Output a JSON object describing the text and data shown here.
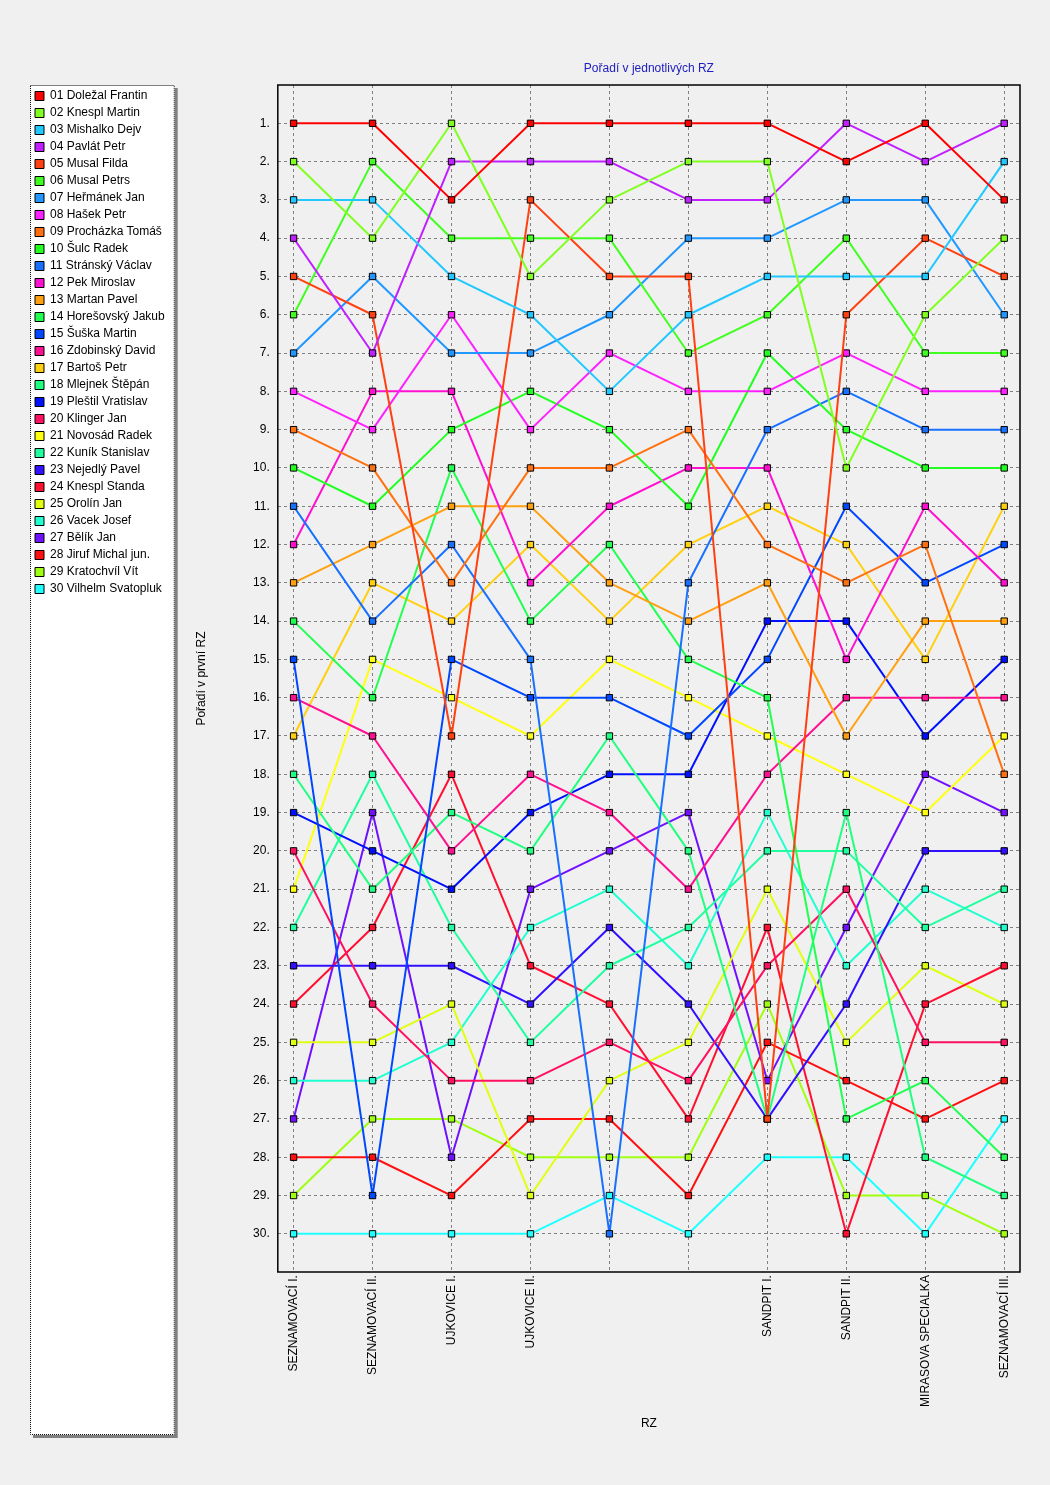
{
  "chart_data": {
    "type": "line",
    "title": "Pořadí v jednotlivých RZ",
    "xlabel": "RZ",
    "ylabel": "Pořadí v první RZ",
    "categories": [
      "SEZNAMOVACÍ I.",
      "SEZNAMOVACÍ II.",
      "UJKOVICE I.",
      "UJKOVICE II.",
      null,
      null,
      "SANDPIT I.",
      "SANDPIT II.",
      "MIRASOVA SPECIALKA",
      "SEZNAMOVACÍ III."
    ],
    "ylim": [
      31,
      0
    ],
    "yticks": [
      {
        "value": 1,
        "label": "1."
      },
      {
        "value": 2,
        "label": "2."
      },
      {
        "value": 3,
        "label": "3."
      },
      {
        "value": 4,
        "label": "4."
      },
      {
        "value": 5,
        "label": "5."
      },
      {
        "value": 6,
        "label": "6."
      },
      {
        "value": 7,
        "label": "7."
      },
      {
        "value": 8,
        "label": "8."
      },
      {
        "value": 9,
        "label": "9."
      },
      {
        "value": 10,
        "label": "10."
      },
      {
        "value": 11,
        "label": "11."
      },
      {
        "value": 12,
        "label": "12."
      },
      {
        "value": 13,
        "label": "13."
      },
      {
        "value": 14,
        "label": "14."
      },
      {
        "value": 15,
        "label": "15."
      },
      {
        "value": 16,
        "label": "16."
      },
      {
        "value": 17,
        "label": "17."
      },
      {
        "value": 18,
        "label": "18."
      },
      {
        "value": 19,
        "label": "19."
      },
      {
        "value": 20,
        "label": "20."
      },
      {
        "value": 21,
        "label": "21."
      },
      {
        "value": 22,
        "label": "22."
      },
      {
        "value": 23,
        "label": "23."
      },
      {
        "value": 24,
        "label": "24."
      },
      {
        "value": 25,
        "label": "25."
      },
      {
        "value": 26,
        "label": "26."
      },
      {
        "value": 27,
        "label": "27."
      },
      {
        "value": 28,
        "label": "28."
      },
      {
        "value": 29,
        "label": "29."
      },
      {
        "value": 30,
        "label": "30."
      }
    ],
    "grid": true,
    "legend": "left",
    "marker": "square",
    "line_style": "solid",
    "series": [
      {
        "name": "01 Doležal Frantin",
        "color": "#ff0000",
        "values": [
          1,
          1,
          3,
          1,
          1,
          1,
          1,
          2,
          1,
          3
        ]
      },
      {
        "name": "02 Knespl Martin",
        "color": "#80ff20",
        "values": [
          2,
          4,
          1,
          5,
          3,
          2,
          2,
          10,
          6,
          4
        ]
      },
      {
        "name": "03 Mishalko Dejv",
        "color": "#20c8ff",
        "values": [
          3,
          3,
          5,
          6,
          8,
          6,
          5,
          5,
          5,
          2
        ]
      },
      {
        "name": "04 Pavlát Petr",
        "color": "#c020ff",
        "values": [
          4,
          7,
          2,
          2,
          2,
          3,
          3,
          1,
          2,
          1
        ]
      },
      {
        "name": "05 Musal Filda",
        "color": "#ff4010",
        "values": [
          5,
          6,
          17,
          3,
          5,
          5,
          27,
          6,
          4,
          5
        ]
      },
      {
        "name": "06 Musal Petrs",
        "color": "#40ff20",
        "values": [
          6,
          2,
          4,
          4,
          4,
          7,
          6,
          4,
          7,
          7
        ]
      },
      {
        "name": "07 Heřmánek Jan",
        "color": "#2098ff",
        "values": [
          7,
          5,
          7,
          7,
          6,
          4,
          4,
          3,
          3,
          6
        ]
      },
      {
        "name": "08 Hašek Petr",
        "color": "#ff20ff",
        "values": [
          8,
          9,
          6,
          9,
          7,
          8,
          8,
          7,
          8,
          8
        ]
      },
      {
        "name": "09 Procházka Tomáš",
        "color": "#ff7010",
        "values": [
          9,
          10,
          13,
          10,
          10,
          9,
          12,
          13,
          12,
          18
        ]
      },
      {
        "name": "10 Šulc Radek",
        "color": "#20ff20",
        "values": [
          10,
          11,
          9,
          8,
          9,
          11,
          7,
          9,
          10,
          10
        ]
      },
      {
        "name": "11 Stránský Václav",
        "color": "#1870ff",
        "values": [
          11,
          14,
          12,
          15,
          30,
          13,
          9,
          8,
          9,
          9
        ]
      },
      {
        "name": "12 Pek Miroslav",
        "color": "#ff10d0",
        "values": [
          12,
          8,
          8,
          13,
          11,
          10,
          10,
          15,
          11,
          13
        ]
      },
      {
        "name": "13 Martan Pavel",
        "color": "#ffa010",
        "values": [
          13,
          12,
          11,
          11,
          13,
          14,
          13,
          17,
          14,
          14
        ]
      },
      {
        "name": "14 Horešovský Jakub",
        "color": "#20ff50",
        "values": [
          14,
          16,
          10,
          14,
          12,
          15,
          16,
          27,
          26,
          28
        ]
      },
      {
        "name": "15 Šuška Martin",
        "color": "#0048ff",
        "values": [
          15,
          29,
          15,
          16,
          16,
          17,
          15,
          11,
          13,
          12
        ]
      },
      {
        "name": "16 Zdobinský David",
        "color": "#ff1090",
        "values": [
          16,
          17,
          20,
          18,
          19,
          21,
          18,
          16,
          16,
          16
        ]
      },
      {
        "name": "17 Bartoš Petr",
        "color": "#ffd010",
        "values": [
          17,
          13,
          14,
          12,
          14,
          12,
          11,
          12,
          15,
          11
        ]
      },
      {
        "name": "18 Mlejnek Štěpán",
        "color": "#20ff80",
        "values": [
          18,
          21,
          19,
          20,
          17,
          20,
          27,
          19,
          28,
          29
        ]
      },
      {
        "name": "19 Pleštil Vratislav",
        "color": "#0010ff",
        "values": [
          19,
          20,
          21,
          19,
          18,
          18,
          14,
          14,
          17,
          15
        ]
      },
      {
        "name": "20 Klinger Jan",
        "color": "#ff1060",
        "values": [
          20,
          24,
          26,
          26,
          25,
          26,
          23,
          21,
          25,
          25
        ]
      },
      {
        "name": "21 Novosád Radek",
        "color": "#ffff10",
        "values": [
          21,
          15,
          16,
          17,
          15,
          16,
          17,
          18,
          19,
          17
        ]
      },
      {
        "name": "22 Kuník Stanislav",
        "color": "#20ffa0",
        "values": [
          22,
          18,
          22,
          25,
          23,
          22,
          20,
          20,
          22,
          21
        ]
      },
      {
        "name": "23 Nejedlý Pavel",
        "color": "#3010ff",
        "values": [
          23,
          23,
          23,
          24,
          22,
          24,
          27,
          24,
          20,
          20
        ]
      },
      {
        "name": "24 Knespl Standa",
        "color": "#ff1030",
        "values": [
          24,
          22,
          18,
          23,
          24,
          27,
          22,
          30,
          24,
          23
        ]
      },
      {
        "name": "25 Orolín Jan",
        "color": "#e0ff10",
        "values": [
          25,
          25,
          24,
          29,
          26,
          25,
          21,
          25,
          23,
          24
        ]
      },
      {
        "name": "26 Vacek Josef",
        "color": "#20ffd0",
        "values": [
          26,
          26,
          25,
          22,
          21,
          23,
          19,
          23,
          21,
          22
        ]
      },
      {
        "name": "27 Bělík Jan",
        "color": "#7010ff",
        "values": [
          27,
          19,
          28,
          21,
          20,
          19,
          26,
          22,
          18,
          19
        ]
      },
      {
        "name": "28 Jiruf Michal jun.",
        "color": "#ff1010",
        "values": [
          28,
          28,
          29,
          27,
          27,
          29,
          25,
          26,
          27,
          26
        ]
      },
      {
        "name": "29 Kratochvíl Vít",
        "color": "#a0ff10",
        "values": [
          29,
          27,
          27,
          28,
          28,
          28,
          24,
          29,
          29,
          30
        ]
      },
      {
        "name": "30 Vilhelm Svatopluk",
        "color": "#20ffff",
        "values": [
          30,
          30,
          30,
          30,
          29,
          30,
          28,
          28,
          30,
          27
        ]
      }
    ]
  }
}
